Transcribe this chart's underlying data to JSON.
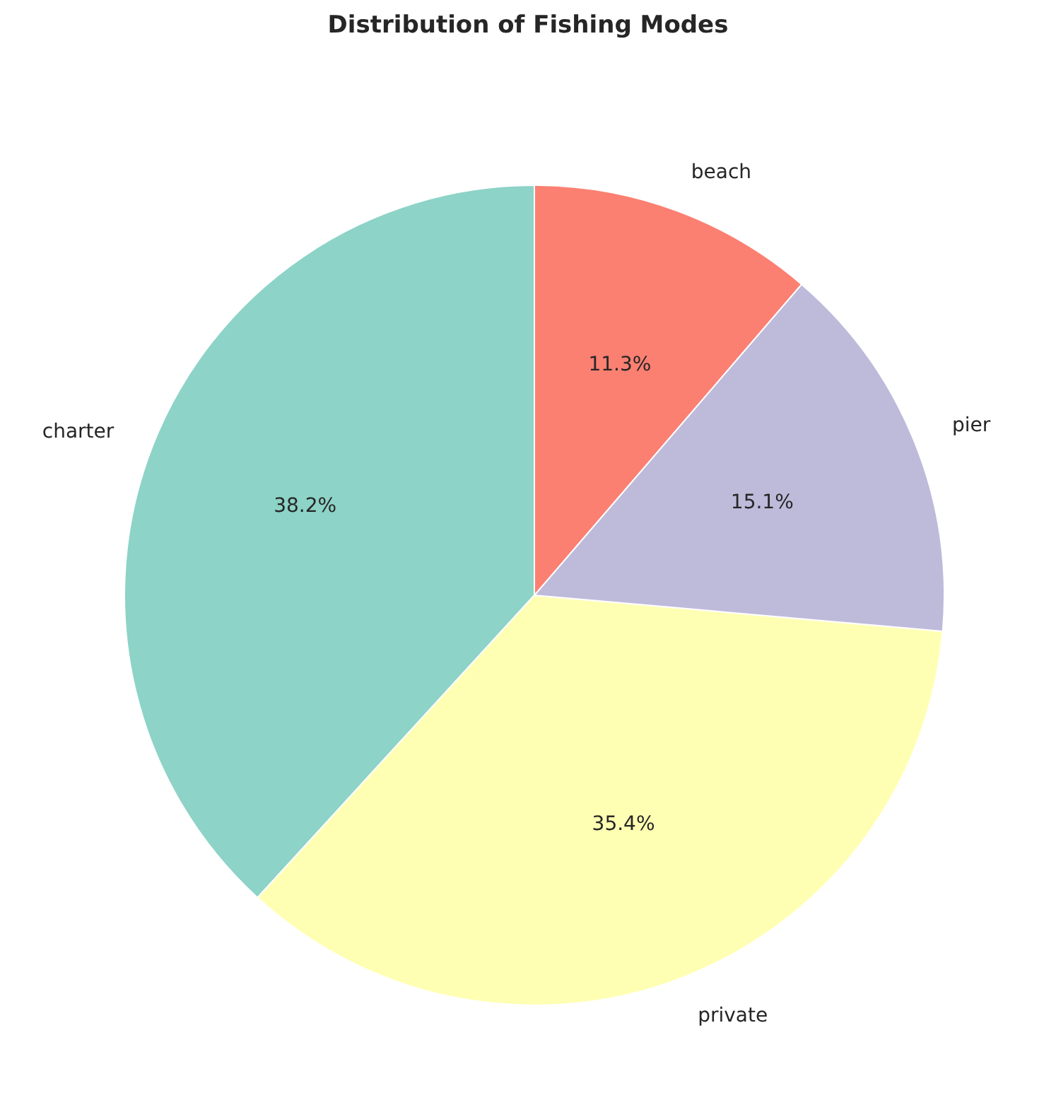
{
  "chart_data": {
    "type": "pie",
    "title": "Distribution of Fishing Modes",
    "categories": [
      "charter",
      "private",
      "pier",
      "beach"
    ],
    "values": [
      38.2,
      35.4,
      15.1,
      11.3
    ],
    "value_labels": [
      "38.2%",
      "35.4%",
      "15.1%",
      "11.3%"
    ],
    "colors": [
      "#8dd3c7",
      "#ffffb3",
      "#bebada",
      "#fb8072"
    ],
    "legend": false
  }
}
